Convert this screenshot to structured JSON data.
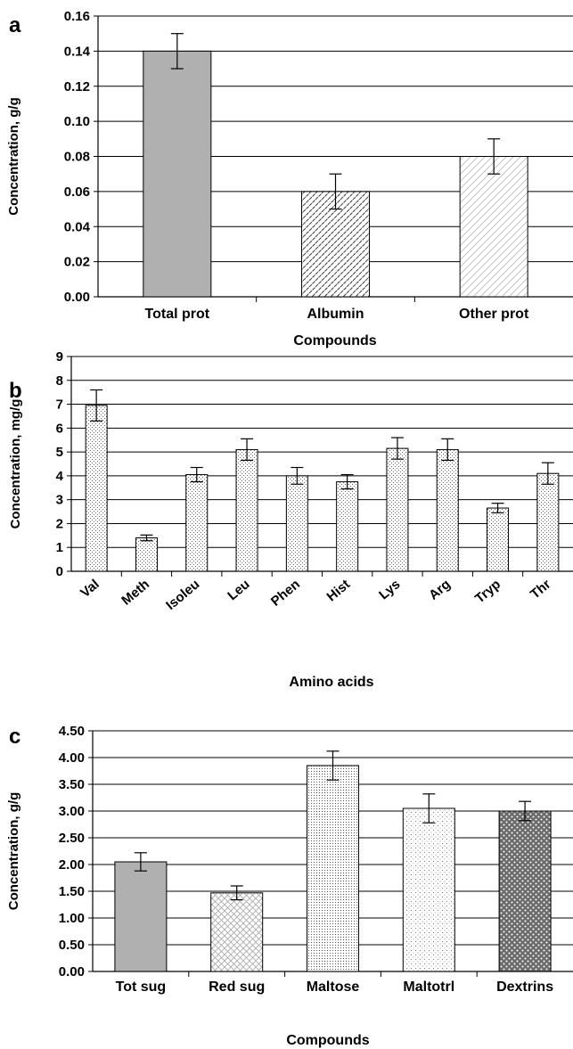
{
  "chart_data": [
    {
      "panel_label": "a",
      "type": "bar",
      "xlabel": "Compounds",
      "ylabel": "Concentration, g/g",
      "ylim": [
        0,
        0.16
      ],
      "yticks": [
        "0.00",
        "0.02",
        "0.04",
        "0.06",
        "0.08",
        "0.10",
        "0.12",
        "0.14",
        "0.16"
      ],
      "grid": true,
      "categories": [
        "Total prot",
        "Albumin",
        "Other prot"
      ],
      "values": [
        0.14,
        0.06,
        0.08
      ],
      "errors": [
        0.01,
        0.01,
        0.01
      ],
      "fills": [
        "solid-gray",
        "dense-dashes",
        "light-hatch"
      ]
    },
    {
      "panel_label": "b",
      "type": "bar",
      "xlabel": "Amino acids",
      "ylabel": "Concentration, mg/g",
      "ylim": [
        0,
        9
      ],
      "yticks": [
        "0",
        "1",
        "2",
        "3",
        "4",
        "5",
        "6",
        "7",
        "8",
        "9"
      ],
      "grid": true,
      "categories": [
        "Val",
        "Meth",
        "Isoleu",
        "Leu",
        "Phen",
        "Hist",
        "Lys",
        "Arg",
        "Tryp",
        "Thr"
      ],
      "values": [
        6.95,
        1.4,
        4.05,
        5.1,
        4.0,
        3.75,
        5.15,
        5.1,
        2.65,
        4.1
      ],
      "errors": [
        0.65,
        0.12,
        0.3,
        0.45,
        0.35,
        0.3,
        0.45,
        0.45,
        0.2,
        0.45
      ],
      "fills": [
        "dots"
      ]
    },
    {
      "panel_label": "c",
      "type": "bar",
      "xlabel": "Compounds",
      "ylabel": "Concentration, g/g",
      "ylim": [
        0,
        4.5
      ],
      "yticks": [
        "0.00",
        "0.50",
        "1.00",
        "1.50",
        "2.00",
        "2.50",
        "3.00",
        "3.50",
        "4.00",
        "4.50"
      ],
      "grid": true,
      "categories": [
        "Tot sug",
        "Red sug",
        "Maltose",
        "Maltotrl",
        "Dextrins"
      ],
      "values": [
        2.05,
        1.47,
        3.85,
        3.05,
        3.0
      ],
      "errors": [
        0.17,
        0.13,
        0.27,
        0.27,
        0.18
      ],
      "fills": [
        "solid-gray",
        "crosshatch",
        "dense-dots",
        "sparse-dots",
        "dark-dots"
      ]
    }
  ]
}
